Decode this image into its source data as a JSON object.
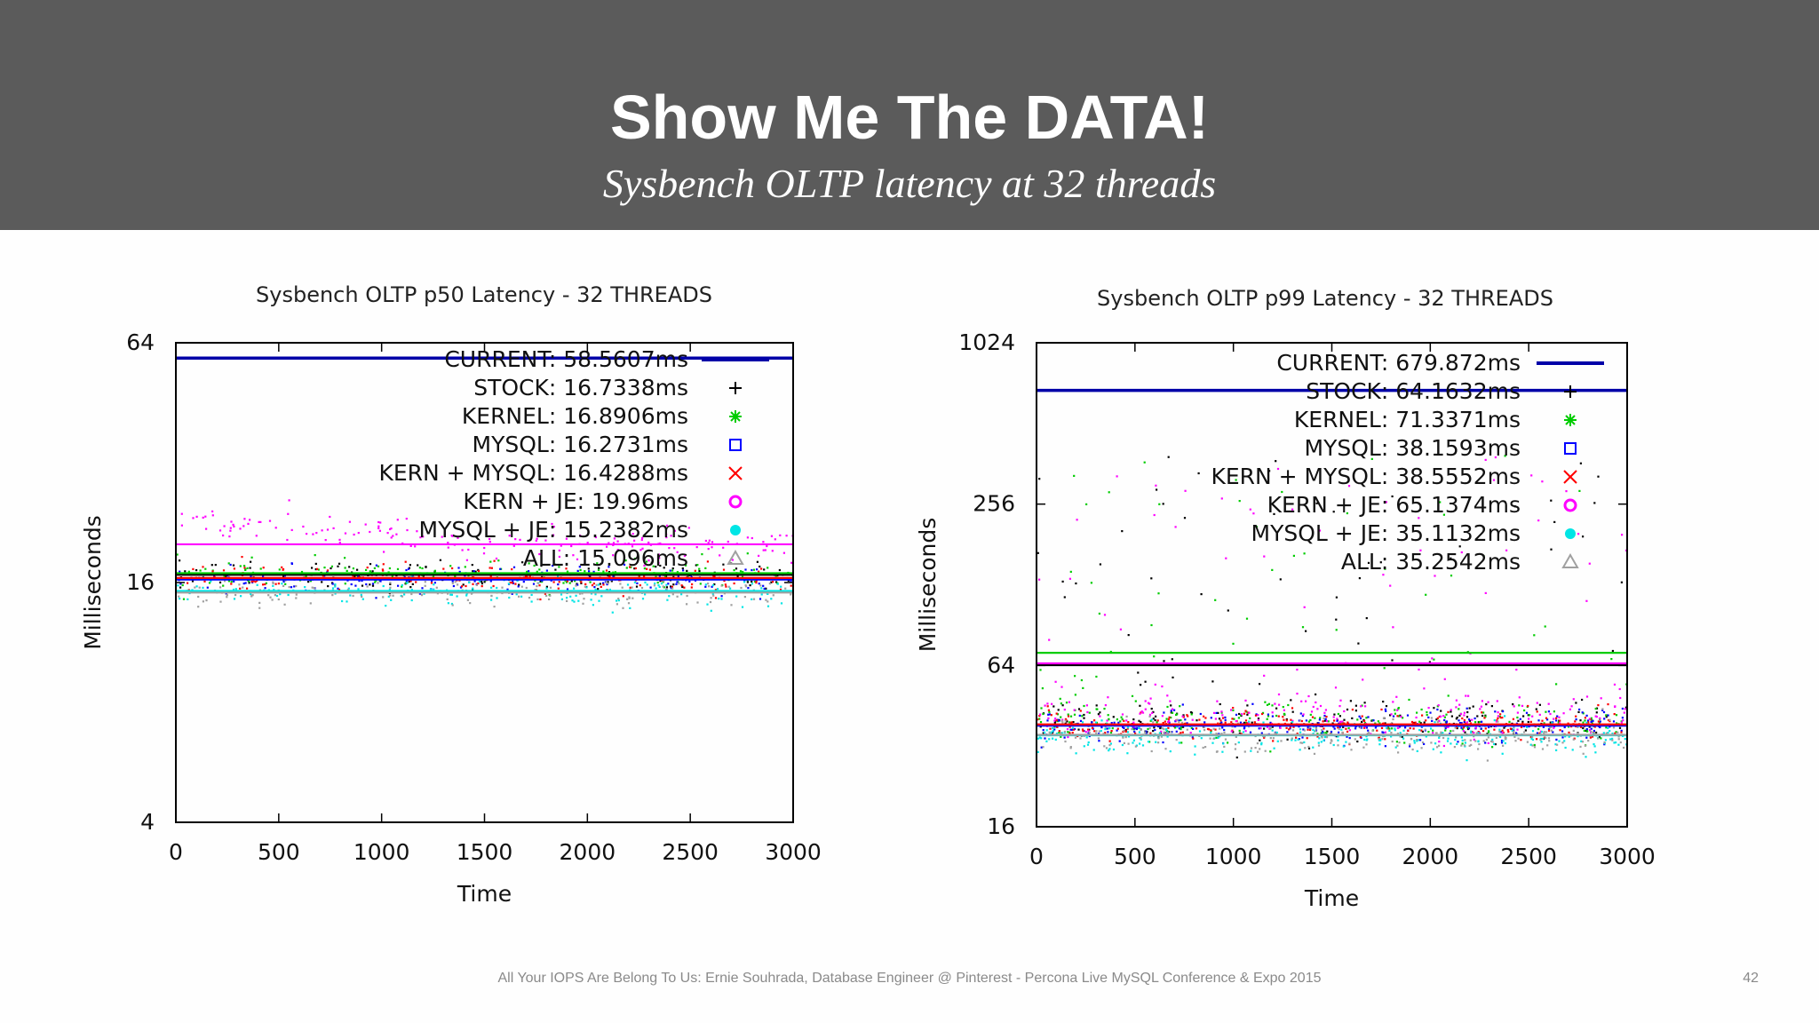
{
  "slide": {
    "title": "Show Me The DATA!",
    "subtitle": "Sysbench OLTP latency at 32 threads",
    "footer": "All Your IOPS Are Belong To Us: Ernie Souhrada, Database Engineer @ Pinterest - Percona Live MySQL Conference & Expo 2015",
    "page_number": "42"
  },
  "chart_data": [
    {
      "type": "scatter",
      "title": "Sysbench OLTP p50 Latency - 32 THREADS",
      "xlabel": "Time",
      "ylabel": "Milliseconds",
      "xlim": [
        0,
        3000
      ],
      "ylim": [
        4,
        64
      ],
      "yscale": "log2",
      "xticks": [
        0,
        500,
        1000,
        1500,
        2000,
        2500,
        3000
      ],
      "yticks": [
        4,
        16,
        64
      ],
      "legend_position": "top-right",
      "grid": false,
      "series": [
        {
          "name": "CURRENT: 58.5607ms",
          "value": 58.5607,
          "color": "#0000a8",
          "marker": "line",
          "typical": 58.5607,
          "spread": 0
        },
        {
          "name": "STOCK: 16.7338ms",
          "value": 16.7338,
          "color": "#000000",
          "marker": "+",
          "typical": 16.7338,
          "spread": 0.06
        },
        {
          "name": "KERNEL: 16.8906ms",
          "value": 16.8906,
          "color": "#00cc00",
          "marker": "*",
          "typical": 16.8906,
          "spread": 0.06
        },
        {
          "name": "MYSQL: 16.2731ms",
          "value": 16.2731,
          "color": "#0000ff",
          "marker": "square",
          "typical": 16.2731,
          "spread": 0.06
        },
        {
          "name": "KERN + MYSQL: 16.4288ms",
          "value": 16.4288,
          "color": "#ff0000",
          "marker": "x",
          "typical": 16.4288,
          "spread": 0.06
        },
        {
          "name": "KERN + JE: 19.96ms",
          "value": 19.96,
          "color": "#ff00ff",
          "marker": "circle",
          "typical": 19.96,
          "spread": 0.07,
          "start": 23.5
        },
        {
          "name": "MYSQL + JE: 15.2382ms",
          "value": 15.2382,
          "color": "#00e5e5",
          "marker": "dot",
          "typical": 15.2382,
          "spread": 0.06
        },
        {
          "name": "ALL: 15.096ms",
          "value": 15.096,
          "color": "#a0a0a0",
          "marker": "triangle",
          "typical": 15.096,
          "spread": 0.06
        }
      ]
    },
    {
      "type": "scatter",
      "title": "Sysbench OLTP p99 Latency - 32 THREADS",
      "xlabel": "Time",
      "ylabel": "Milliseconds",
      "xlim": [
        0,
        3000
      ],
      "ylim": [
        16,
        1024
      ],
      "yscale": "log2",
      "xticks": [
        0,
        500,
        1000,
        1500,
        2000,
        2500,
        3000
      ],
      "yticks": [
        16,
        64,
        256,
        1024
      ],
      "legend_position": "top-right",
      "grid": false,
      "series": [
        {
          "name": "CURRENT: 679.872ms",
          "value": 679.872,
          "color": "#0000a8",
          "marker": "line",
          "typical": 679.872,
          "spread": 0
        },
        {
          "name": "STOCK: 64.1632ms",
          "value": 64.1632,
          "color": "#000000",
          "marker": "+",
          "typical": 40,
          "spread": 0.12
        },
        {
          "name": "KERNEL: 71.3371ms",
          "value": 71.3371,
          "color": "#00cc00",
          "marker": "*",
          "typical": 40,
          "spread": 0.12
        },
        {
          "name": "MYSQL: 38.1593ms",
          "value": 38.1593,
          "color": "#0000ff",
          "marker": "square",
          "typical": 38.1593,
          "spread": 0.1
        },
        {
          "name": "KERN + MYSQL: 38.5552ms",
          "value": 38.5552,
          "color": "#ff0000",
          "marker": "x",
          "typical": 38.5552,
          "spread": 0.1
        },
        {
          "name": "KERN + JE: 65.1374ms",
          "value": 65.1374,
          "color": "#ff00ff",
          "marker": "circle",
          "typical": 42,
          "spread": 0.14
        },
        {
          "name": "MYSQL + JE: 35.1132ms",
          "value": 35.1132,
          "color": "#00e5e5",
          "marker": "dot",
          "typical": 35.1132,
          "spread": 0.1
        },
        {
          "name": "ALL: 35.2542ms",
          "value": 35.2542,
          "color": "#a0a0a0",
          "marker": "triangle",
          "typical": 35.2542,
          "spread": 0.1
        }
      ]
    }
  ]
}
